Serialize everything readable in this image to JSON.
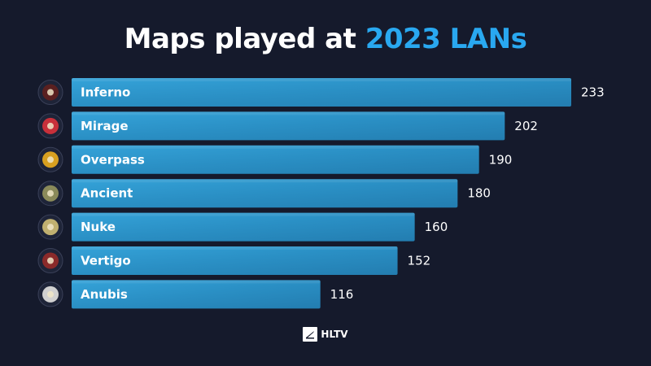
{
  "title": {
    "main": "Maps played at",
    "accent": "2023 LANs"
  },
  "footer": {
    "brand": "HLTV"
  },
  "colors": {
    "background": "#151a2c",
    "bar": "#2a8fc4",
    "accent": "#29a8f0"
  },
  "chart_data": {
    "type": "bar",
    "orientation": "horizontal",
    "title": "Maps played at 2023 LANs",
    "categories": [
      "Inferno",
      "Mirage",
      "Overpass",
      "Ancient",
      "Nuke",
      "Vertigo",
      "Anubis"
    ],
    "values": [
      233,
      202,
      190,
      180,
      160,
      152,
      116
    ],
    "icons": [
      "inferno-map-icon",
      "mirage-map-icon",
      "overpass-map-icon",
      "ancient-map-icon",
      "nuke-map-icon",
      "vertigo-map-icon",
      "anubis-map-icon"
    ],
    "xlabel": "",
    "ylabel": "",
    "grid": false,
    "data_labels": true
  }
}
